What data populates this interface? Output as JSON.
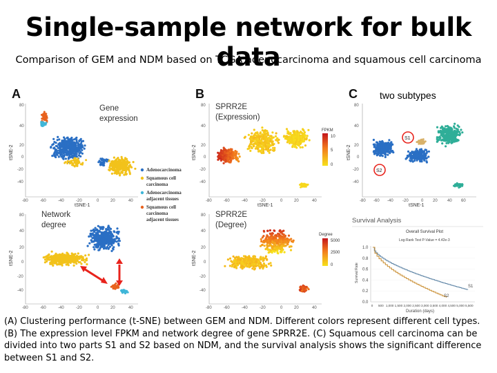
{
  "title": "Single-sample network for bulk data",
  "subtitle": "Comparison of GEM and NDM based on TCGA adenocarcinoma and squamous cell carcinoma",
  "panels": {
    "a_label": "A",
    "b_label": "B",
    "c_label": "C",
    "a_top_title_1": "Gene",
    "a_top_title_2": "expression",
    "a_bottom_title_1": "Network",
    "a_bottom_title_2": "degree",
    "b_top_title_1": "SPRR2E",
    "b_top_title_2": "(Expression)",
    "b_bottom_title_1": "SPRR2E",
    "b_bottom_title_2": "(Degree)",
    "c_note": "two subtypes",
    "s1": "S1",
    "s2": "S2"
  },
  "axes": {
    "xlabel": "tSNE-1",
    "ylabel": "tSNE-2"
  },
  "legend": [
    {
      "label_lines": [
        "Adenocarcinoma"
      ],
      "color": "#2a6fc4"
    },
    {
      "label_lines": [
        "Squamous cell",
        "carcinoma"
      ],
      "color": "#f2c21b"
    },
    {
      "label_lines": [
        "Adenocarcinoma",
        "adjacent tissues"
      ],
      "color": "#3fb6d8"
    },
    {
      "label_lines": [
        "Squamous cell",
        "carcinoma",
        "adjacent tissues"
      ],
      "color": "#e8621e"
    }
  ],
  "colorbars": {
    "fpkm_label": "FPKM",
    "fpkm_ticks": [
      "10",
      "5",
      "0"
    ],
    "degree_label": "Degree",
    "degree_ticks": [
      "5000",
      "2500",
      "0"
    ]
  },
  "survival": {
    "header": "Survival Analysis",
    "title": "Overall Survival Plot",
    "pvalue": "Log-Rank Test P-Value = 4.42e-3",
    "ylabel": "Survival Rate",
    "xlabel": "Duration (days)",
    "yticks": [
      "1.0",
      "0.8",
      "0.6",
      "0.4",
      "0.2",
      "0.0"
    ],
    "xticks": [
      "0",
      "500",
      "1,000",
      "1,500",
      "2,000",
      "2,500",
      "3,000",
      "3,500",
      "4,000",
      "4,500",
      "5,000",
      "5,500"
    ],
    "end_labels": [
      "S1",
      "S2"
    ]
  },
  "caption": "(A) Clustering performance (t-SNE) between GEM and NDM. Different colors represent different cell types. (B) The expression level FPKM and network degree of gene SPRR2E. (C) Squamous cell carcinoma can be divided into two parts S1 and S2 based on NDM, and the survival analysis shows the significant difference between S1 and S2.",
  "colors": {
    "adeno": "#2a6fc4",
    "squamous": "#f2c21b",
    "adeno_adjacent": "#3fb6d8",
    "squamous_adjacent": "#e8621e",
    "s1_teal": "#2fae98",
    "s2_blue": "#2a6fc4",
    "tan": "#d9b26a",
    "arrow_red": "#e8231c"
  }
}
